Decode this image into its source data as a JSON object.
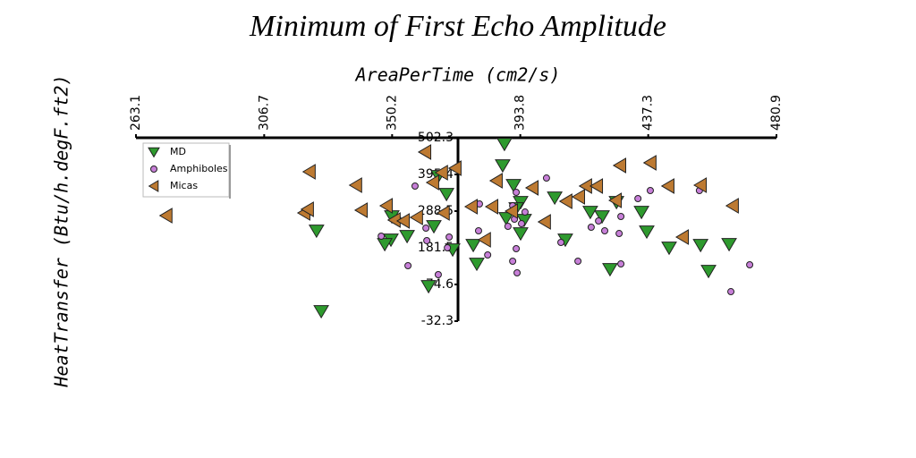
{
  "chart_data": {
    "type": "scatter",
    "title": "Minimum of First Echo Amplitude",
    "x_label": "AreaPerTime (cm2/s)",
    "y_label": "HeatTransfer (Btu/h.degF.ft2)",
    "xlim": [
      263.1,
      480.9
    ],
    "xticks": [
      263.1,
      306.7,
      350.2,
      393.8,
      437.3,
      480.9
    ],
    "ylim": [
      -32.3,
      502.3
    ],
    "yticks": [
      502.3,
      395.4,
      288.5,
      181.5,
      74.6,
      -32.3
    ],
    "legend": "upper left",
    "series": [
      {
        "name": "MD",
        "color": "#2e9a2e",
        "marker": "triangle-down",
        "x": [
          388.4,
          387.8,
          391.5,
          393.9,
          368.7,
          392.4,
          389.0,
          395.1,
          405.5,
          417.6,
          421.6,
          426.5,
          435.0,
          409.1,
          393.9,
          436.8,
          444.4,
          455.1,
          464.8,
          457.8,
          424.3,
          379.0,
          377.8,
          370.8,
          364.4,
          355.3,
          349.8,
          347.7,
          350.1,
          324.5,
          326.1,
          362.6,
          365.9
        ],
        "values": [
          484.0,
          421.5,
          364.1,
          314.5,
          338.0,
          296.3,
          267.6,
          262.4,
          327.6,
          285.8,
          272.8,
          314.5,
          285.8,
          205.0,
          223.2,
          228.5,
          181.5,
          189.3,
          191.9,
          113.7,
          118.9,
          134.6,
          189.3,
          176.3,
          244.1,
          215.4,
          205.0,
          191.9,
          272.8,
          231.1,
          -3.6,
          69.4,
          390.2
        ]
      },
      {
        "name": "Amphiboles",
        "color": "#c77fd8",
        "marker": "circle",
        "x": [
          358.0,
          402.7,
          392.4,
          379.9,
          391.2,
          395.4,
          391.8,
          389.6,
          394.2,
          379.6,
          369.6,
          362.0,
          346.5,
          369.0,
          382.7,
          392.4,
          391.2,
          392.7,
          355.6,
          365.9,
          407.6,
          413.4,
          417.9,
          420.4,
          422.5,
          427.4,
          428.0,
          428.0,
          433.8,
          438.0,
          454.7,
          471.8,
          465.4,
          361.7,
          352.2
        ],
        "values": [
          361.5,
          384.9,
          343.2,
          309.3,
          304.1,
          285.8,
          265.0,
          244.1,
          251.9,
          231.1,
          212.8,
          202.4,
          215.4,
          181.5,
          160.7,
          178.9,
          142.4,
          108.5,
          129.4,
          103.3,
          197.2,
          142.4,
          241.5,
          259.8,
          231.1,
          223.2,
          272.8,
          134.6,
          325.0,
          348.4,
          348.4,
          132.0,
          53.7,
          238.9,
          265.0
        ]
      },
      {
        "name": "Micas",
        "color": "#bd7a32",
        "marker": "triangle-left",
        "x": [
          273.4,
          322.1,
          320.3,
          321.5,
          337.9,
          339.8,
          348.3,
          351.0,
          354.1,
          358.6,
          361.4,
          364.1,
          371.7,
          367.7,
          377.2,
          384.2,
          385.7,
          381.7,
          397.9,
          402.1,
          409.4,
          413.7,
          416.1,
          419.8,
          426.2,
          427.7,
          438.0,
          444.1,
          449.0,
          455.1,
          466.0,
          367.1,
          390.9
        ],
        "values": [
          275.4,
          403.2,
          283.2,
          293.7,
          364.1,
          291.1,
          304.1,
          262.4,
          259.8,
          270.2,
          460.6,
          371.9,
          413.6,
          283.2,
          301.5,
          301.5,
          377.1,
          205.0,
          356.3,
          257.1,
          317.1,
          330.2,
          361.5,
          361.5,
          319.7,
          421.5,
          429.3,
          361.5,
          212.8,
          364.1,
          304.1,
          400.6,
          288.4
        ]
      }
    ]
  }
}
